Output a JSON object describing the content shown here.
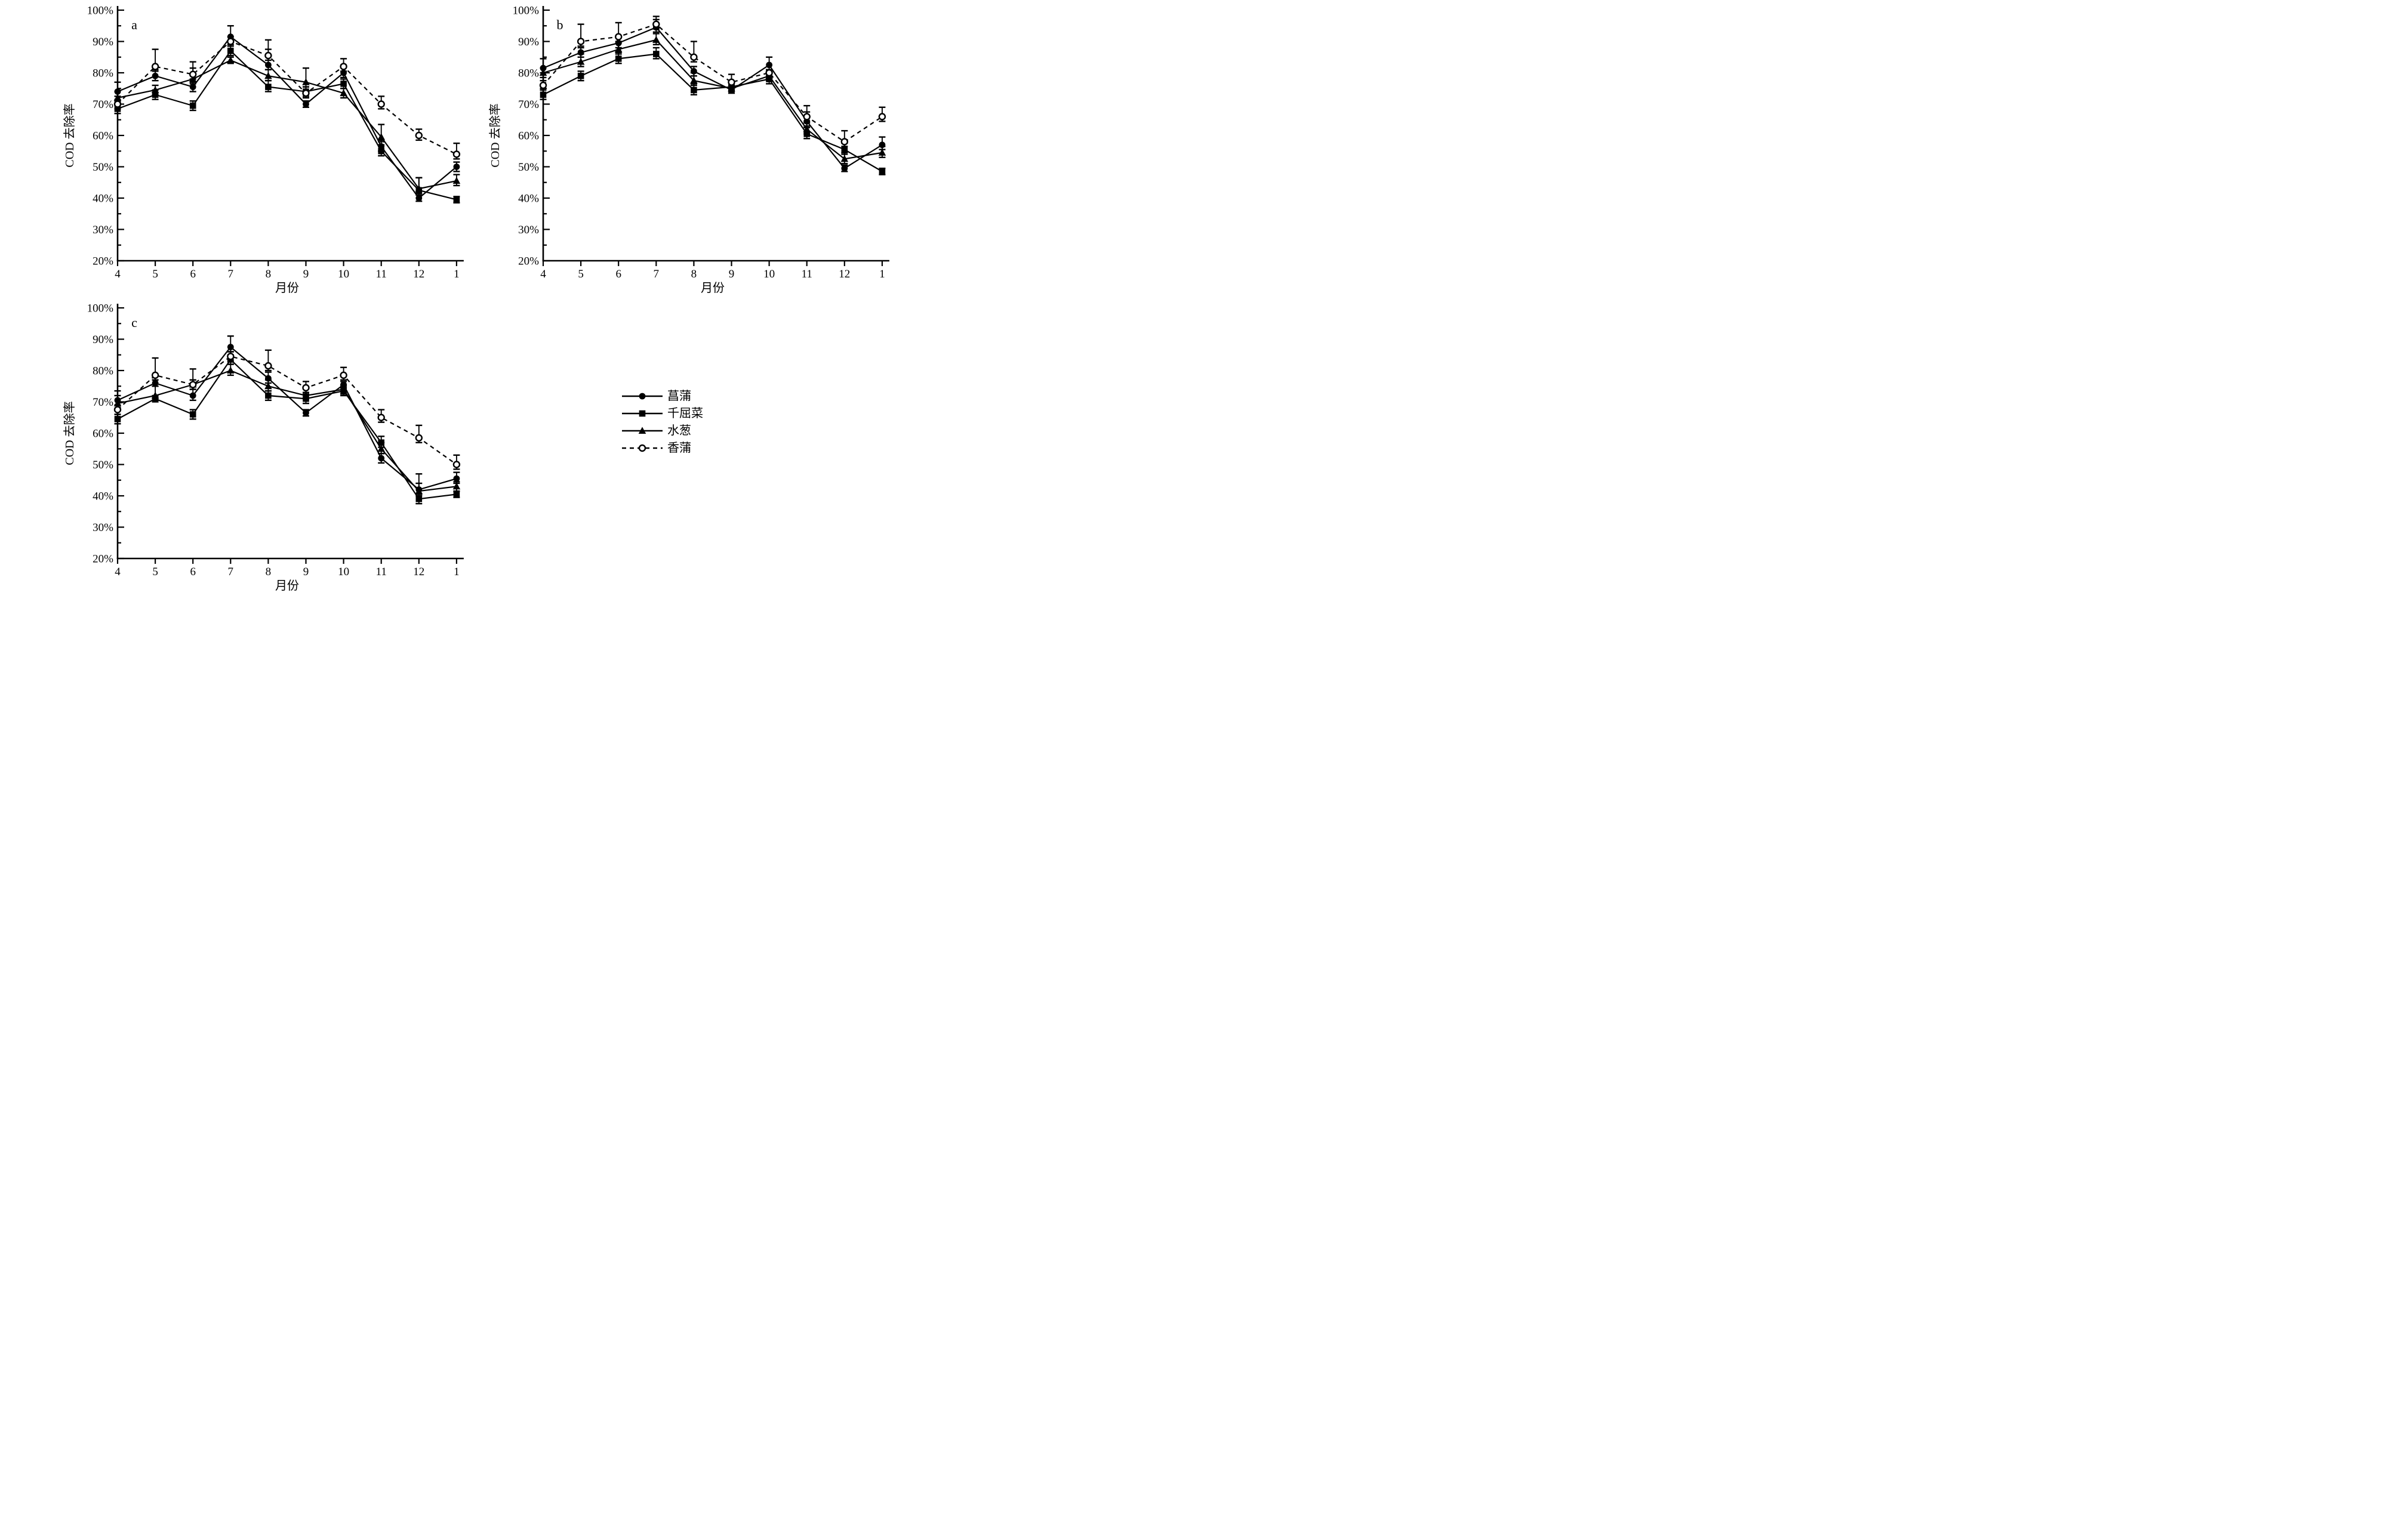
{
  "figure": {
    "y_axis_label": "COD 去除率",
    "x_axis_label": "月份",
    "y_tick_suffix": "%",
    "y_min": 20,
    "y_max": 100,
    "y_major_step": 10,
    "y_minor_step": 5,
    "months": [
      "4",
      "5",
      "6",
      "7",
      "8",
      "9",
      "10",
      "11",
      "12",
      "1"
    ],
    "panel_letters": [
      "a",
      "b",
      "c"
    ]
  },
  "legend": {
    "items": [
      {
        "label": "菖蒲",
        "marker": "filled-circle",
        "line": "solid"
      },
      {
        "label": "千屈菜",
        "marker": "filled-square",
        "line": "solid"
      },
      {
        "label": "水葱",
        "marker": "filled-triangle",
        "line": "solid"
      },
      {
        "label": "香蒲",
        "marker": "open-circle",
        "line": "dashed"
      }
    ]
  },
  "chart_data": [
    {
      "id": "a",
      "type": "line",
      "panel_label": "a",
      "title": "",
      "xlabel": "月份",
      "ylabel": "COD 去除率",
      "ylim": [
        20,
        100
      ],
      "x": [
        "4",
        "5",
        "6",
        "7",
        "8",
        "9",
        "10",
        "11",
        "12",
        "1"
      ],
      "series": [
        {
          "name": "菖蒲",
          "marker": "filled-circle",
          "line": "solid",
          "values": [
            74,
            79,
            75.5,
            91.5,
            82.5,
            70,
            80,
            56.5,
            40,
            50
          ],
          "err": [
            3,
            2,
            1.5,
            3.5,
            8,
            1,
            2.5,
            2,
            1,
            1.5
          ]
        },
        {
          "name": "千屈菜",
          "marker": "filled-square",
          "line": "solid",
          "values": [
            68.5,
            73,
            69.5,
            87,
            75.5,
            74,
            76.5,
            55,
            42.5,
            39.5
          ],
          "err": [
            2.5,
            1.5,
            1.5,
            2,
            2,
            1.5,
            1.5,
            2,
            4,
            1
          ]
        },
        {
          "name": "水葱",
          "marker": "filled-triangle",
          "line": "solid",
          "values": [
            72,
            74.5,
            78,
            84,
            79,
            77,
            73.5,
            59.5,
            43,
            45.5
          ],
          "err": [
            2,
            1.5,
            5.5,
            1,
            2,
            4.5,
            1.5,
            4,
            3.5,
            2
          ]
        },
        {
          "name": "香蒲",
          "marker": "open-circle",
          "line": "dashed",
          "values": [
            70,
            82,
            79.5,
            90,
            85.5,
            73.5,
            82,
            70,
            60,
            54
          ],
          "err": [
            1.5,
            5.5,
            2,
            1.5,
            2,
            2,
            2.5,
            2.5,
            2,
            3.5
          ]
        }
      ]
    },
    {
      "id": "b",
      "type": "line",
      "panel_label": "b",
      "title": "",
      "xlabel": "月份",
      "ylabel": "COD 去除率",
      "ylim": [
        20,
        100
      ],
      "x": [
        "4",
        "5",
        "6",
        "7",
        "8",
        "9",
        "10",
        "11",
        "12",
        "1"
      ],
      "series": [
        {
          "name": "菖蒲",
          "marker": "filled-circle",
          "line": "solid",
          "values": [
            81.5,
            86.5,
            89.5,
            94.5,
            80.5,
            74.5,
            82.5,
            64.5,
            49.5,
            57
          ],
          "err": [
            3,
            1.5,
            2,
            2.5,
            1.5,
            1,
            2.5,
            3,
            1,
            2.5
          ]
        },
        {
          "name": "千屈菜",
          "marker": "filled-square",
          "line": "solid",
          "values": [
            73,
            79,
            84.5,
            86,
            74.5,
            75.5,
            78,
            60.5,
            55.5,
            48.5
          ],
          "err": [
            2,
            1.5,
            2,
            2,
            2,
            1,
            1.5,
            2,
            2,
            1
          ]
        },
        {
          "name": "水葱",
          "marker": "filled-triangle",
          "line": "solid",
          "values": [
            80,
            83.5,
            87.5,
            90.5,
            77.5,
            75,
            79,
            62,
            52.5,
            54.5
          ],
          "err": [
            1.5,
            2.5,
            2,
            2,
            2.5,
            1,
            1.5,
            2,
            2,
            2
          ]
        },
        {
          "name": "香蒲",
          "marker": "open-circle",
          "line": "dashed",
          "values": [
            76,
            90,
            91.5,
            95.5,
            85,
            77,
            80,
            66,
            58,
            66
          ],
          "err": [
            1.5,
            5.5,
            4.5,
            2.5,
            5,
            2.5,
            1,
            3.5,
            3.5,
            3
          ]
        }
      ]
    },
    {
      "id": "c",
      "type": "line",
      "panel_label": "c",
      "title": "",
      "xlabel": "月份",
      "ylabel": "COD 去除率",
      "ylim": [
        20,
        100
      ],
      "x": [
        "4",
        "5",
        "6",
        "7",
        "8",
        "9",
        "10",
        "11",
        "12",
        "1"
      ],
      "series": [
        {
          "name": "菖蒲",
          "marker": "filled-circle",
          "line": "solid",
          "values": [
            70.5,
            76,
            72,
            87.5,
            77.5,
            66.5,
            75.5,
            52,
            42,
            45.5
          ],
          "err": [
            3,
            1,
            5,
            3.5,
            2,
            1,
            1,
            1.5,
            2,
            2
          ]
        },
        {
          "name": "千屈菜",
          "marker": "filled-square",
          "line": "solid",
          "values": [
            64.5,
            71,
            66,
            83.5,
            72,
            71,
            73.5,
            57,
            39,
            40.5
          ],
          "err": [
            1.5,
            1,
            1.5,
            1.5,
            1.5,
            1.5,
            1.5,
            2,
            1.5,
            1
          ]
        },
        {
          "name": "水葱",
          "marker": "filled-triangle",
          "line": "solid",
          "values": [
            69.5,
            72,
            75.5,
            80,
            75,
            72,
            74,
            55,
            41.5,
            43
          ],
          "err": [
            2.5,
            3,
            1.5,
            2,
            2,
            1,
            1.5,
            2,
            5.5,
            1.5
          ]
        },
        {
          "name": "香蒲",
          "marker": "open-circle",
          "line": "dashed",
          "values": [
            67.5,
            78.5,
            75.5,
            84.5,
            81.5,
            74.5,
            78.5,
            65,
            58.5,
            50
          ],
          "err": [
            1.5,
            5.5,
            5,
            1.5,
            5,
            2,
            2.5,
            2.5,
            4,
            3
          ]
        }
      ]
    }
  ]
}
